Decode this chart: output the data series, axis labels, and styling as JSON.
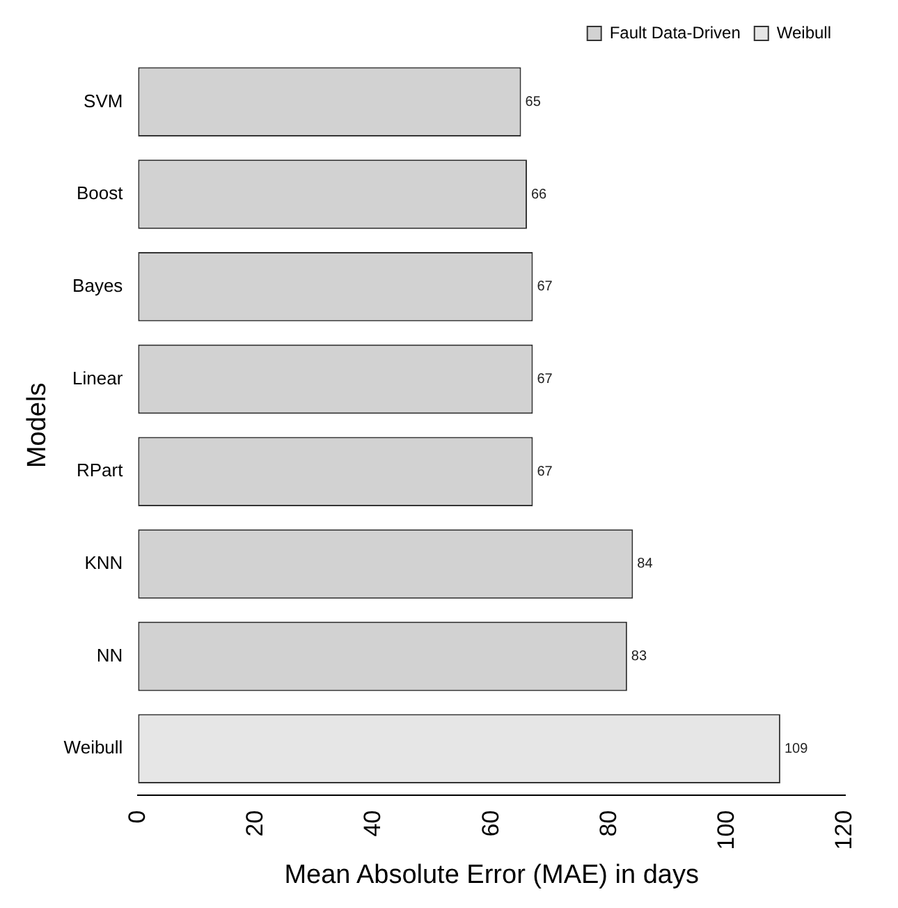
{
  "chart_data": {
    "type": "bar",
    "orientation": "horizontal",
    "xlabel": "Mean Absolute Error (MAE) in days",
    "ylabel": "Models",
    "categories": [
      "SVM",
      "Boost",
      "Bayes",
      "Linear",
      "RPart",
      "KNN",
      "NN",
      "Weibull"
    ],
    "series": [
      {
        "name": "Fault Data-Driven",
        "color": "#d2d2d2",
        "values": [
          65,
          66,
          67,
          67,
          67,
          84,
          83,
          null
        ]
      },
      {
        "name": "Weibull",
        "color": "#e6e6e6",
        "values": [
          null,
          null,
          null,
          null,
          null,
          null,
          null,
          109
        ]
      }
    ],
    "xlim": [
      0,
      120
    ],
    "xticks": [
      0,
      20,
      40,
      60,
      80,
      100,
      120
    ],
    "data_labels": true,
    "legend": "top right",
    "grid": false
  }
}
